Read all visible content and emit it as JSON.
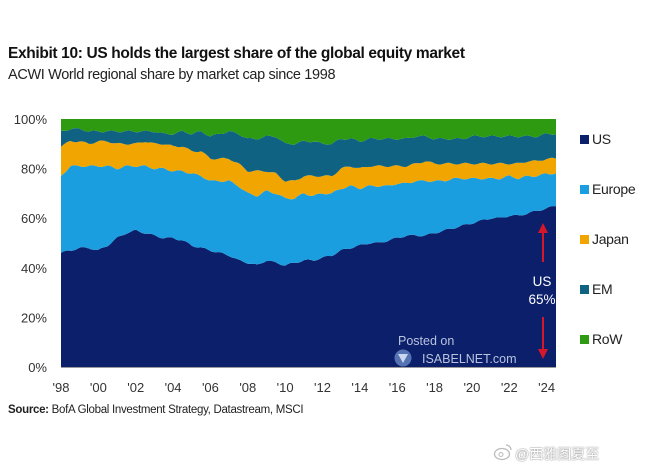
{
  "header": {
    "title": "Exhibit 10: US holds the largest share of the global equity market",
    "subtitle": "ACWI World regional share by market cap since 1998"
  },
  "source": {
    "label": "Source:",
    "text": "BofA Global Investment Strategy, Datastream, MSCI"
  },
  "annotation": {
    "line1": "US",
    "line2": "65%",
    "arrow_color": "#d6172a"
  },
  "watermark": {
    "line1": "Posted on",
    "line2": "ISABELNET.com"
  },
  "social_watermark": {
    "text": "@西雅图夏至"
  },
  "chart_data": {
    "type": "area",
    "stacked": true,
    "title": "Exhibit 10: US holds the largest share of the global equity market",
    "subtitle": "ACWI World regional share by market cap since 1998",
    "xlabel": "",
    "ylabel": "",
    "ylim": [
      0,
      100
    ],
    "xlim": [
      1998,
      2024.5
    ],
    "grid": false,
    "legend_position": "right",
    "yticks": [
      "0%",
      "20%",
      "40%",
      "60%",
      "80%",
      "100%"
    ],
    "ytick_values": [
      0,
      20,
      40,
      60,
      80,
      100
    ],
    "xticks": [
      "'98",
      "'00",
      "'02",
      "'04",
      "'06",
      "'08",
      "'10",
      "'12",
      "'14",
      "'16",
      "'18",
      "'20",
      "'22",
      "'24"
    ],
    "xtick_values": [
      1998,
      2000,
      2002,
      2004,
      2006,
      2008,
      2010,
      2012,
      2014,
      2016,
      2018,
      2020,
      2022,
      2024
    ],
    "x": [
      1998,
      1998.5,
      1999,
      1999.5,
      2000,
      2000.5,
      2001,
      2001.5,
      2002,
      2002.5,
      2003,
      2003.5,
      2004,
      2004.5,
      2005,
      2005.5,
      2006,
      2006.5,
      2007,
      2007.5,
      2008,
      2008.5,
      2009,
      2009.5,
      2010,
      2010.5,
      2011,
      2011.5,
      2012,
      2012.5,
      2013,
      2013.5,
      2014,
      2014.5,
      2015,
      2015.5,
      2016,
      2016.5,
      2017,
      2017.5,
      2018,
      2018.5,
      2019,
      2019.5,
      2020,
      2020.5,
      2021,
      2021.5,
      2022,
      2022.5,
      2023,
      2023.5,
      2024,
      2024.5
    ],
    "series": [
      {
        "name": "US",
        "color": "#0b1f6b",
        "values": [
          46,
          47,
          48,
          48,
          47,
          49,
          52,
          54,
          55,
          54,
          53,
          52,
          52,
          51,
          49,
          48,
          47,
          46,
          45,
          43,
          42,
          41,
          43,
          42,
          41,
          42,
          43,
          43,
          44,
          45,
          47,
          48,
          49,
          50,
          50,
          51,
          52,
          53,
          53,
          53,
          54,
          55,
          56,
          57,
          58,
          59,
          60,
          60,
          61,
          61,
          62,
          63,
          64,
          65
        ]
      },
      {
        "name": "Europe",
        "color": "#1a9ee0",
        "values": [
          31,
          34,
          33,
          33,
          34,
          32,
          28,
          27,
          26,
          27,
          27,
          28,
          27,
          28,
          29,
          29,
          28,
          29,
          30,
          30,
          28,
          28,
          28,
          28,
          27,
          26,
          27,
          26,
          26,
          25,
          25,
          25,
          23,
          23,
          23,
          22,
          22,
          21,
          22,
          22,
          21,
          20,
          20,
          19,
          18,
          17,
          16,
          16,
          16,
          15,
          15,
          14,
          14,
          13
        ]
      },
      {
        "name": "Japan",
        "color": "#f0a500",
        "values": [
          12,
          10,
          10,
          9,
          10,
          10,
          10,
          9,
          9,
          10,
          10,
          10,
          10,
          10,
          9,
          10,
          9,
          9,
          9,
          9,
          9,
          10,
          8,
          8,
          7,
          7,
          7,
          8,
          7,
          7,
          8,
          8,
          8,
          8,
          8,
          8,
          7,
          7,
          7,
          8,
          7,
          7,
          6,
          6,
          6,
          6,
          6,
          6,
          5,
          6,
          6,
          6,
          6,
          6
        ]
      },
      {
        "name": "EM",
        "color": "#0f6282",
        "values": [
          6,
          5,
          5,
          5,
          4,
          4,
          5,
          5,
          5,
          4,
          5,
          4,
          5,
          6,
          7,
          8,
          9,
          10,
          11,
          12,
          13,
          13,
          14,
          15,
          15,
          15,
          14,
          14,
          13,
          13,
          12,
          11,
          11,
          11,
          11,
          11,
          11,
          11,
          11,
          10,
          10,
          10,
          10,
          10,
          11,
          11,
          11,
          11,
          11,
          11,
          10,
          10,
          10,
          10
        ]
      },
      {
        "name": "RoW",
        "color": "#2e9a12",
        "values": [
          5,
          4,
          4,
          5,
          5,
          5,
          5,
          5,
          5,
          5,
          5,
          6,
          6,
          5,
          6,
          5,
          7,
          6,
          5,
          6,
          8,
          8,
          7,
          7,
          10,
          10,
          9,
          9,
          10,
          10,
          8,
          8,
          9,
          8,
          8,
          8,
          8,
          8,
          7,
          7,
          8,
          8,
          8,
          8,
          7,
          7,
          7,
          7,
          7,
          7,
          7,
          7,
          6,
          6
        ]
      }
    ]
  }
}
